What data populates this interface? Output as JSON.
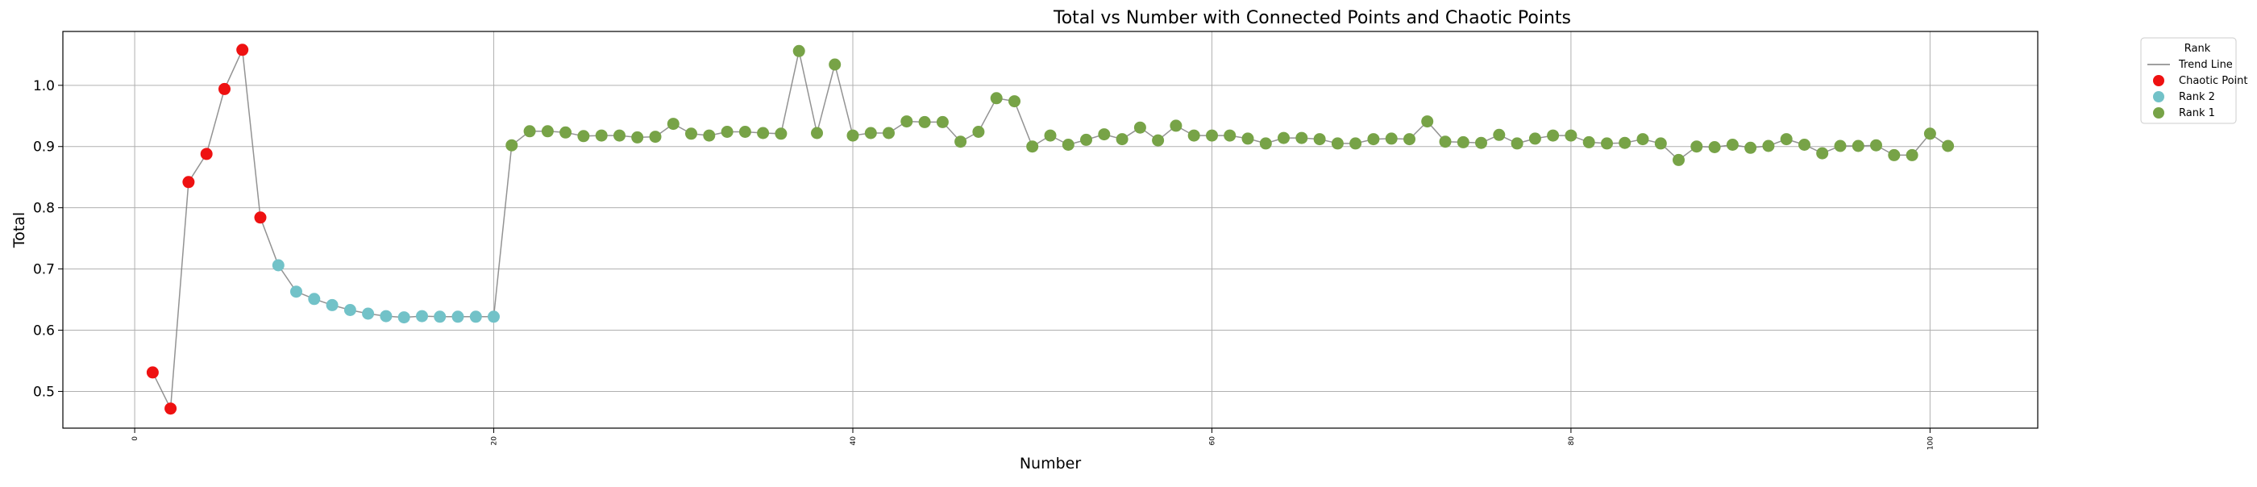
{
  "chart_data": {
    "type": "scatter",
    "title": "Total vs Number with Connected Points and Chaotic Points",
    "xlabel": "Number",
    "ylabel": "Total",
    "xlim": [
      -4,
      106
    ],
    "ylim": [
      0.44,
      1.088
    ],
    "x_ticks": [
      0,
      20,
      40,
      60,
      80,
      100
    ],
    "y_ticks": [
      0.5,
      0.6,
      0.7,
      0.8,
      0.9,
      1.0
    ],
    "x_tick_labels": [
      "0",
      "20",
      "40",
      "60",
      "80",
      "100"
    ],
    "y_tick_labels": [
      "0.5",
      "0.6",
      "0.7",
      "0.8",
      "0.9",
      "1.0"
    ],
    "grid": true,
    "legend": {
      "title": "Rank",
      "placement": "outside-top-right",
      "entries": [
        {
          "label": "Trend Line",
          "kind": "line",
          "color": "#808080"
        },
        {
          "label": "Chaotic Point",
          "kind": "marker",
          "color": "#ee1111"
        },
        {
          "label": "Rank 2",
          "kind": "marker",
          "color": "#72c2c8"
        },
        {
          "label": "Rank 1",
          "kind": "marker",
          "color": "#77a347"
        }
      ]
    },
    "colors": {
      "trend_line": "#808080",
      "chaotic": "#ee1111",
      "rank2": "#72c2c8",
      "rank1": "#77a347",
      "grid": "#b0b0b0",
      "axes": "#000000"
    },
    "x": [
      1,
      2,
      3,
      4,
      5,
      6,
      7,
      8,
      9,
      10,
      11,
      12,
      13,
      14,
      15,
      16,
      17,
      18,
      19,
      20,
      21,
      22,
      23,
      24,
      25,
      26,
      27,
      28,
      29,
      30,
      31,
      32,
      33,
      34,
      35,
      36,
      37,
      38,
      39,
      40,
      41,
      42,
      43,
      44,
      45,
      46,
      47,
      48,
      49,
      50,
      51,
      52,
      53,
      54,
      55,
      56,
      57,
      58,
      59,
      60,
      61,
      62,
      63,
      64,
      65,
      66,
      67,
      68,
      69,
      70,
      71,
      72,
      73,
      74,
      75,
      76,
      77,
      78,
      79,
      80,
      81,
      82,
      83,
      84,
      85,
      86,
      87,
      88,
      89,
      90,
      91,
      92,
      93,
      94,
      95,
      96,
      97,
      98,
      99,
      100,
      101
    ],
    "y": [
      0.531,
      0.472,
      0.842,
      0.888,
      0.994,
      1.058,
      0.784,
      0.706,
      0.663,
      0.651,
      0.641,
      0.633,
      0.627,
      0.623,
      0.621,
      0.623,
      0.622,
      0.622,
      0.622,
      0.622,
      0.902,
      0.925,
      0.925,
      0.923,
      0.917,
      0.918,
      0.918,
      0.915,
      0.916,
      0.937,
      0.921,
      0.918,
      0.924,
      0.924,
      0.922,
      0.921,
      1.056,
      0.922,
      1.034,
      0.918,
      0.922,
      0.922,
      0.941,
      0.94,
      0.94,
      0.908,
      0.924,
      0.979,
      0.974,
      0.9,
      0.918,
      0.903,
      0.911,
      0.92,
      0.912,
      0.931,
      0.91,
      0.934,
      0.918,
      0.918,
      0.918,
      0.913,
      0.905,
      0.914,
      0.914,
      0.912,
      0.905,
      0.905,
      0.912,
      0.913,
      0.912,
      0.941,
      0.908,
      0.907,
      0.906,
      0.919,
      0.905,
      0.913,
      0.918,
      0.918,
      0.907,
      0.905,
      0.906,
      0.912,
      0.905,
      0.878,
      0.9,
      0.899,
      0.903,
      0.898,
      0.901,
      0.912,
      0.903,
      0.889,
      0.901,
      0.901,
      0.902,
      0.886,
      0.886,
      0.921,
      0.901
    ],
    "categories_per_point": [
      "chaotic",
      "chaotic",
      "chaotic",
      "chaotic",
      "chaotic",
      "chaotic",
      "chaotic",
      "rank2",
      "rank2",
      "rank2",
      "rank2",
      "rank2",
      "rank2",
      "rank2",
      "rank2",
      "rank2",
      "rank2",
      "rank2",
      "rank2",
      "rank2",
      "rank1",
      "rank1",
      "rank1",
      "rank1",
      "rank1",
      "rank1",
      "rank1",
      "rank1",
      "rank1",
      "rank1",
      "rank1",
      "rank1",
      "rank1",
      "rank1",
      "rank1",
      "rank1",
      "rank1",
      "rank1",
      "rank1",
      "rank1",
      "rank1",
      "rank1",
      "rank1",
      "rank1",
      "rank1",
      "rank1",
      "rank1",
      "rank1",
      "rank1",
      "rank1",
      "rank1",
      "rank1",
      "rank1",
      "rank1",
      "rank1",
      "rank1",
      "rank1",
      "rank1",
      "rank1",
      "rank1",
      "rank1",
      "rank1",
      "rank1",
      "rank1",
      "rank1",
      "rank1",
      "rank1",
      "rank1",
      "rank1",
      "rank1",
      "rank1",
      "rank1",
      "rank1",
      "rank1",
      "rank1",
      "rank1",
      "rank1",
      "rank1",
      "rank1",
      "rank1",
      "rank1",
      "rank1",
      "rank1",
      "rank1",
      "rank1",
      "rank1",
      "rank1",
      "rank1",
      "rank1",
      "rank1",
      "rank1",
      "rank1",
      "rank1",
      "rank1",
      "rank1",
      "rank1",
      "rank1",
      "rank1",
      "rank1",
      "rank1",
      "rank1"
    ]
  }
}
